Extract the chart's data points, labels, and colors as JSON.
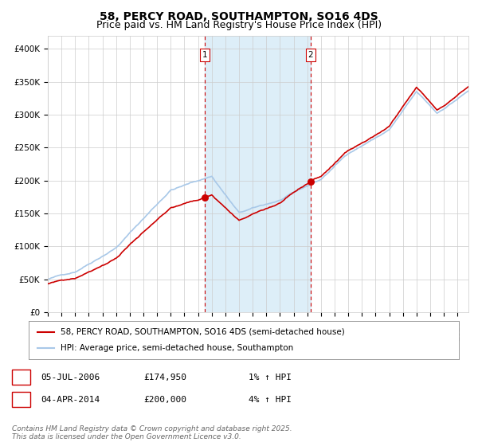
{
  "title": "58, PERCY ROAD, SOUTHAMPTON, SO16 4DS",
  "subtitle": "Price paid vs. HM Land Registry's House Price Index (HPI)",
  "ylim": [
    0,
    420000
  ],
  "yticks": [
    0,
    50000,
    100000,
    150000,
    200000,
    250000,
    300000,
    350000,
    400000
  ],
  "ytick_labels": [
    "£0",
    "£50K",
    "£100K",
    "£150K",
    "£200K",
    "£250K",
    "£300K",
    "£350K",
    "£400K"
  ],
  "hpi_line_color": "#a8c8e8",
  "price_line_color": "#cc0000",
  "dot_color": "#cc0000",
  "vline_color": "#cc0000",
  "shade_color": "#ddeef8",
  "background_color": "#ffffff",
  "grid_color": "#cccccc",
  "purchase1_date": 2006.5,
  "purchase1_price": 174950,
  "purchase2_date": 2014.25,
  "purchase2_price": 200000,
  "legend_price_label": "58, PERCY ROAD, SOUTHAMPTON, SO16 4DS (semi-detached house)",
  "legend_hpi_label": "HPI: Average price, semi-detached house, Southampton",
  "annotation1_date": "05-JUL-2006",
  "annotation1_price": "£174,950",
  "annotation1_hpi": "1% ↑ HPI",
  "annotation2_date": "04-APR-2014",
  "annotation2_price": "£200,000",
  "annotation2_hpi": "4% ↑ HPI",
  "footnote": "Contains HM Land Registry data © Crown copyright and database right 2025.\nThis data is licensed under the Open Government Licence v3.0.",
  "title_fontsize": 10,
  "subtitle_fontsize": 9,
  "tick_fontsize": 7.5,
  "legend_fontsize": 7.5,
  "annotation_fontsize": 8,
  "footnote_fontsize": 6.5,
  "xlim_start": 1995,
  "xlim_end": 2025.8
}
